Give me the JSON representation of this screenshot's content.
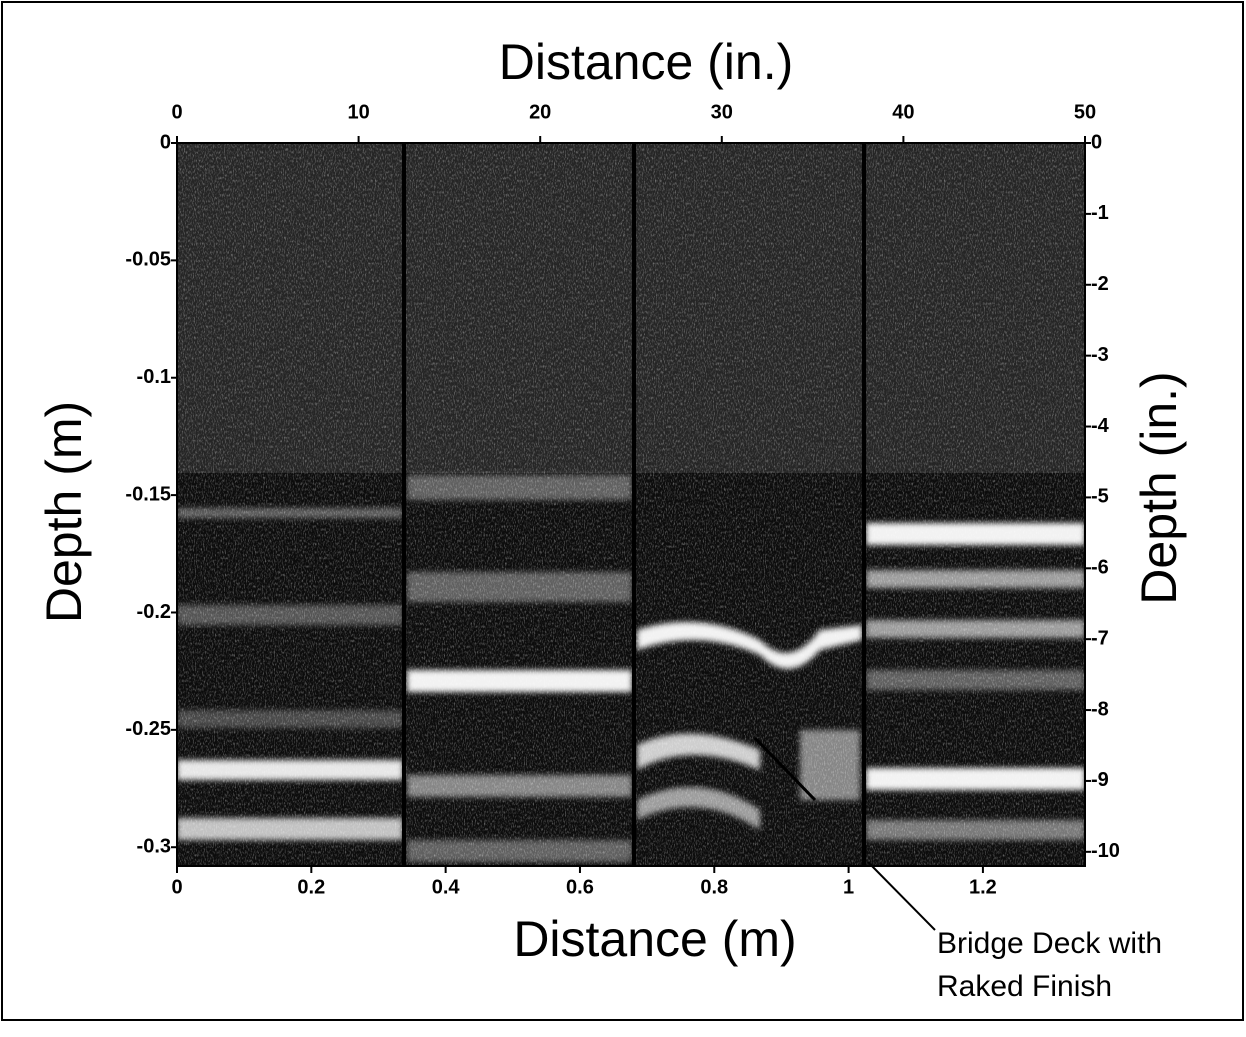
{
  "chart_data": {
    "type": "image",
    "title": "Distance (in.)",
    "xlabel": "Distance (m)",
    "ylabel": "Depth (m)",
    "y2label": "Depth (in.)",
    "annotation": [
      "Bridge Deck with",
      "Raked Finish"
    ],
    "xlim": [
      0,
      1.352
    ],
    "xticks": [
      0,
      0.2,
      0.4,
      0.6,
      0.8,
      1,
      1.2
    ],
    "x2lim": [
      0,
      50
    ],
    "x2ticks": [
      0,
      10,
      20,
      30,
      40,
      50
    ],
    "ylim": [
      -0.308,
      0
    ],
    "yticks": [
      0,
      -0.05,
      -0.1,
      -0.15,
      -0.2,
      -0.25,
      -0.3
    ],
    "y2lim": [
      -10.2,
      0
    ],
    "y2ticks": [
      0,
      -1,
      -2,
      -3,
      -4,
      -5,
      -6,
      -7,
      -8,
      -9,
      -10
    ]
  }
}
